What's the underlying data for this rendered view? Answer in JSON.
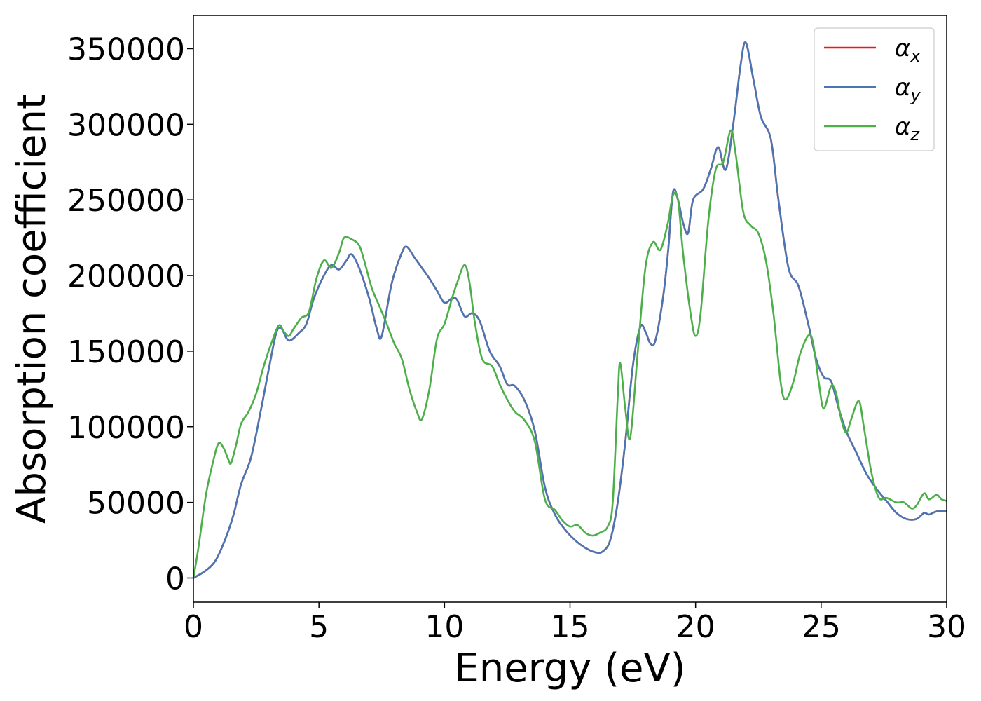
{
  "chart_data": {
    "type": "line",
    "xlabel": "Energy (eV)",
    "ylabel": "Absorption coefficient",
    "xlim": [
      0,
      30
    ],
    "ylim": [
      -16000,
      372000
    ],
    "xticks": [
      0,
      5,
      10,
      15,
      20,
      25,
      30
    ],
    "yticks": [
      0,
      50000,
      100000,
      150000,
      200000,
      250000,
      300000,
      350000
    ],
    "grid": false,
    "legend_position": "top-right",
    "series": [
      {
        "name": "α_x",
        "color": "#e41a1c",
        "points": [
          [
            0,
            0
          ],
          [
            0.5,
            5000
          ],
          [
            0.9,
            12000
          ],
          [
            1.3,
            27000
          ],
          [
            1.6,
            42000
          ],
          [
            1.9,
            62000
          ],
          [
            2.3,
            80000
          ],
          [
            2.7,
            112000
          ],
          [
            3.0,
            138000
          ],
          [
            3.3,
            162000
          ],
          [
            3.5,
            165000
          ],
          [
            3.8,
            157000
          ],
          [
            4.2,
            162000
          ],
          [
            4.5,
            168000
          ],
          [
            4.8,
            185000
          ],
          [
            5.2,
            200000
          ],
          [
            5.5,
            207000
          ],
          [
            5.8,
            204000
          ],
          [
            6.1,
            210000
          ],
          [
            6.3,
            214000
          ],
          [
            6.6,
            205000
          ],
          [
            7.0,
            185000
          ],
          [
            7.3,
            165000
          ],
          [
            7.5,
            160000
          ],
          [
            7.9,
            195000
          ],
          [
            8.3,
            215000
          ],
          [
            8.5,
            219000
          ],
          [
            8.8,
            212000
          ],
          [
            9.1,
            205000
          ],
          [
            9.4,
            198000
          ],
          [
            9.7,
            190000
          ],
          [
            10.0,
            182000
          ],
          [
            10.3,
            185000
          ],
          [
            10.5,
            184000
          ],
          [
            10.8,
            173000
          ],
          [
            11.1,
            175000
          ],
          [
            11.4,
            170000
          ],
          [
            11.8,
            150000
          ],
          [
            12.2,
            140000
          ],
          [
            12.5,
            128000
          ],
          [
            12.8,
            127000
          ],
          [
            13.2,
            117000
          ],
          [
            13.6,
            97000
          ],
          [
            14.0,
            60000
          ],
          [
            14.4,
            42000
          ],
          [
            14.8,
            32000
          ],
          [
            15.2,
            25000
          ],
          [
            15.6,
            20000
          ],
          [
            16.0,
            17000
          ],
          [
            16.3,
            17500
          ],
          [
            16.6,
            25000
          ],
          [
            16.9,
            50000
          ],
          [
            17.2,
            90000
          ],
          [
            17.5,
            140000
          ],
          [
            17.8,
            166000
          ],
          [
            18.0,
            163000
          ],
          [
            18.2,
            155000
          ],
          [
            18.4,
            157000
          ],
          [
            18.7,
            185000
          ],
          [
            18.9,
            215000
          ],
          [
            19.1,
            255000
          ],
          [
            19.3,
            250000
          ],
          [
            19.5,
            235000
          ],
          [
            19.7,
            228000
          ],
          [
            19.9,
            250000
          ],
          [
            20.3,
            257000
          ],
          [
            20.6,
            270000
          ],
          [
            20.9,
            285000
          ],
          [
            21.2,
            270000
          ],
          [
            21.5,
            300000
          ],
          [
            21.8,
            340000
          ],
          [
            22.0,
            354000
          ],
          [
            22.3,
            330000
          ],
          [
            22.6,
            305000
          ],
          [
            23.0,
            290000
          ],
          [
            23.3,
            250000
          ],
          [
            23.7,
            205000
          ],
          [
            24.1,
            193000
          ],
          [
            24.5,
            167000
          ],
          [
            24.8,
            145000
          ],
          [
            25.1,
            133000
          ],
          [
            25.4,
            130000
          ],
          [
            25.7,
            112000
          ],
          [
            26.0,
            97000
          ],
          [
            26.4,
            83000
          ],
          [
            26.8,
            69000
          ],
          [
            27.2,
            59000
          ],
          [
            27.6,
            51000
          ],
          [
            28.0,
            43000
          ],
          [
            28.4,
            39000
          ],
          [
            28.8,
            39000
          ],
          [
            29.1,
            43000
          ],
          [
            29.3,
            42000
          ],
          [
            29.6,
            44000
          ],
          [
            30.0,
            44000
          ]
        ]
      },
      {
        "name": "α_y",
        "color": "#4a77b4",
        "points": [
          [
            0,
            0
          ],
          [
            0.5,
            5000
          ],
          [
            0.9,
            12000
          ],
          [
            1.3,
            27000
          ],
          [
            1.6,
            42000
          ],
          [
            1.9,
            62000
          ],
          [
            2.3,
            80000
          ],
          [
            2.7,
            112000
          ],
          [
            3.0,
            138000
          ],
          [
            3.3,
            162000
          ],
          [
            3.5,
            165000
          ],
          [
            3.8,
            157000
          ],
          [
            4.2,
            162000
          ],
          [
            4.5,
            168000
          ],
          [
            4.8,
            185000
          ],
          [
            5.2,
            200000
          ],
          [
            5.5,
            207000
          ],
          [
            5.8,
            204000
          ],
          [
            6.1,
            210000
          ],
          [
            6.3,
            214000
          ],
          [
            6.6,
            205000
          ],
          [
            7.0,
            185000
          ],
          [
            7.3,
            165000
          ],
          [
            7.5,
            160000
          ],
          [
            7.9,
            195000
          ],
          [
            8.3,
            215000
          ],
          [
            8.5,
            219000
          ],
          [
            8.8,
            212000
          ],
          [
            9.1,
            205000
          ],
          [
            9.4,
            198000
          ],
          [
            9.7,
            190000
          ],
          [
            10.0,
            182000
          ],
          [
            10.3,
            185000
          ],
          [
            10.5,
            184000
          ],
          [
            10.8,
            173000
          ],
          [
            11.1,
            175000
          ],
          [
            11.4,
            170000
          ],
          [
            11.8,
            150000
          ],
          [
            12.2,
            140000
          ],
          [
            12.5,
            128000
          ],
          [
            12.8,
            127000
          ],
          [
            13.2,
            117000
          ],
          [
            13.6,
            97000
          ],
          [
            14.0,
            60000
          ],
          [
            14.4,
            42000
          ],
          [
            14.8,
            32000
          ],
          [
            15.2,
            25000
          ],
          [
            15.6,
            20000
          ],
          [
            16.0,
            17000
          ],
          [
            16.3,
            17500
          ],
          [
            16.6,
            25000
          ],
          [
            16.9,
            50000
          ],
          [
            17.2,
            90000
          ],
          [
            17.5,
            140000
          ],
          [
            17.8,
            166000
          ],
          [
            18.0,
            163000
          ],
          [
            18.2,
            155000
          ],
          [
            18.4,
            157000
          ],
          [
            18.7,
            185000
          ],
          [
            18.9,
            215000
          ],
          [
            19.1,
            255000
          ],
          [
            19.3,
            250000
          ],
          [
            19.5,
            235000
          ],
          [
            19.7,
            228000
          ],
          [
            19.9,
            250000
          ],
          [
            20.3,
            257000
          ],
          [
            20.6,
            270000
          ],
          [
            20.9,
            285000
          ],
          [
            21.2,
            270000
          ],
          [
            21.5,
            300000
          ],
          [
            21.8,
            340000
          ],
          [
            22.0,
            354000
          ],
          [
            22.3,
            330000
          ],
          [
            22.6,
            305000
          ],
          [
            23.0,
            290000
          ],
          [
            23.3,
            250000
          ],
          [
            23.7,
            205000
          ],
          [
            24.1,
            193000
          ],
          [
            24.5,
            167000
          ],
          [
            24.8,
            145000
          ],
          [
            25.1,
            133000
          ],
          [
            25.4,
            130000
          ],
          [
            25.7,
            112000
          ],
          [
            26.0,
            97000
          ],
          [
            26.4,
            83000
          ],
          [
            26.8,
            69000
          ],
          [
            27.2,
            59000
          ],
          [
            27.6,
            51000
          ],
          [
            28.0,
            43000
          ],
          [
            28.4,
            39000
          ],
          [
            28.8,
            39000
          ],
          [
            29.1,
            43000
          ],
          [
            29.3,
            42000
          ],
          [
            29.6,
            44000
          ],
          [
            30.0,
            44000
          ]
        ]
      },
      {
        "name": "α_z",
        "color": "#4daf4a",
        "points": [
          [
            0,
            0
          ],
          [
            0.2,
            20000
          ],
          [
            0.5,
            55000
          ],
          [
            0.8,
            78000
          ],
          [
            1.0,
            89000
          ],
          [
            1.2,
            86000
          ],
          [
            1.4,
            78000
          ],
          [
            1.5,
            76000
          ],
          [
            1.7,
            88000
          ],
          [
            1.9,
            102000
          ],
          [
            2.2,
            110000
          ],
          [
            2.5,
            122000
          ],
          [
            2.8,
            140000
          ],
          [
            3.1,
            155000
          ],
          [
            3.4,
            167000
          ],
          [
            3.6,
            163000
          ],
          [
            3.8,
            160000
          ],
          [
            4.0,
            165000
          ],
          [
            4.3,
            172000
          ],
          [
            4.6,
            176000
          ],
          [
            4.9,
            198000
          ],
          [
            5.2,
            210000
          ],
          [
            5.5,
            205000
          ],
          [
            5.8,
            215000
          ],
          [
            6.0,
            225000
          ],
          [
            6.3,
            224000
          ],
          [
            6.6,
            220000
          ],
          [
            6.8,
            210000
          ],
          [
            7.1,
            192000
          ],
          [
            7.4,
            180000
          ],
          [
            7.7,
            168000
          ],
          [
            8.0,
            155000
          ],
          [
            8.3,
            145000
          ],
          [
            8.6,
            125000
          ],
          [
            8.9,
            110000
          ],
          [
            9.1,
            105000
          ],
          [
            9.4,
            125000
          ],
          [
            9.7,
            158000
          ],
          [
            10.0,
            168000
          ],
          [
            10.3,
            185000
          ],
          [
            10.5,
            195000
          ],
          [
            10.8,
            207000
          ],
          [
            11.0,
            195000
          ],
          [
            11.2,
            170000
          ],
          [
            11.5,
            145000
          ],
          [
            11.9,
            140000
          ],
          [
            12.2,
            128000
          ],
          [
            12.5,
            118000
          ],
          [
            12.8,
            110000
          ],
          [
            13.2,
            104000
          ],
          [
            13.6,
            90000
          ],
          [
            14.0,
            52000
          ],
          [
            14.4,
            45000
          ],
          [
            14.7,
            38000
          ],
          [
            15.0,
            34000
          ],
          [
            15.3,
            35000
          ],
          [
            15.6,
            30000
          ],
          [
            15.9,
            28000
          ],
          [
            16.2,
            30000
          ],
          [
            16.5,
            34000
          ],
          [
            16.7,
            50000
          ],
          [
            16.9,
            120000
          ],
          [
            17.0,
            142000
          ],
          [
            17.2,
            112000
          ],
          [
            17.4,
            93000
          ],
          [
            17.7,
            150000
          ],
          [
            18.0,
            205000
          ],
          [
            18.3,
            222000
          ],
          [
            18.6,
            217000
          ],
          [
            18.9,
            235000
          ],
          [
            19.1,
            253000
          ],
          [
            19.3,
            250000
          ],
          [
            19.5,
            215000
          ],
          [
            19.8,
            175000
          ],
          [
            20.0,
            160000
          ],
          [
            20.2,
            175000
          ],
          [
            20.5,
            235000
          ],
          [
            20.8,
            270000
          ],
          [
            21.1,
            275000
          ],
          [
            21.4,
            296000
          ],
          [
            21.6,
            280000
          ],
          [
            21.9,
            242000
          ],
          [
            22.2,
            233000
          ],
          [
            22.5,
            228000
          ],
          [
            22.8,
            210000
          ],
          [
            23.1,
            175000
          ],
          [
            23.4,
            128000
          ],
          [
            23.6,
            118000
          ],
          [
            23.9,
            130000
          ],
          [
            24.2,
            150000
          ],
          [
            24.6,
            160000
          ],
          [
            24.9,
            130000
          ],
          [
            25.1,
            112000
          ],
          [
            25.4,
            127000
          ],
          [
            25.6,
            122000
          ],
          [
            25.8,
            105000
          ],
          [
            26.0,
            96000
          ],
          [
            26.2,
            105000
          ],
          [
            26.5,
            117000
          ],
          [
            26.7,
            100000
          ],
          [
            27.0,
            70000
          ],
          [
            27.3,
            53000
          ],
          [
            27.6,
            53000
          ],
          [
            28.0,
            50000
          ],
          [
            28.3,
            50000
          ],
          [
            28.6,
            46000
          ],
          [
            28.8,
            48000
          ],
          [
            29.1,
            56000
          ],
          [
            29.3,
            52000
          ],
          [
            29.6,
            55000
          ],
          [
            29.8,
            52000
          ],
          [
            30.0,
            51000
          ]
        ]
      }
    ]
  }
}
